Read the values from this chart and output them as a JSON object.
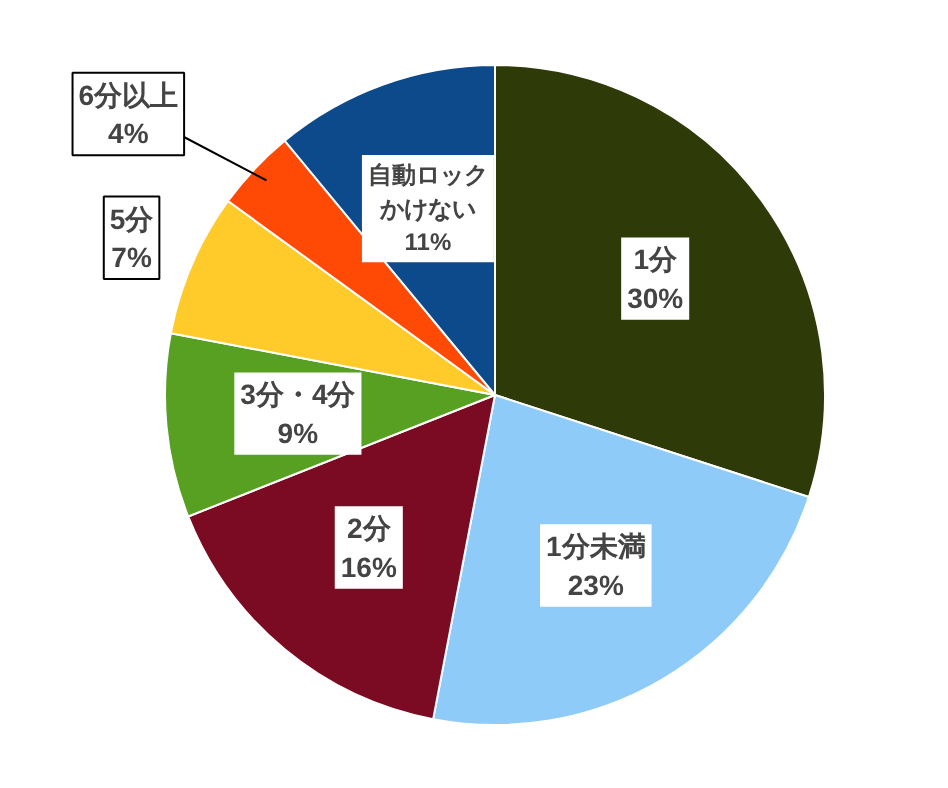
{
  "chart_data": {
    "type": "pie",
    "categories": [
      "1分",
      "1分未満",
      "2分",
      "3分・4分",
      "5分",
      "6分以上",
      "自動ロックかけない"
    ],
    "values": [
      30,
      23,
      16,
      9,
      7,
      4,
      11
    ],
    "value_labels": [
      "30%",
      "23%",
      "16%",
      "9%",
      "7%",
      "4%",
      "11%"
    ],
    "colors": [
      "#2e3b08",
      "#8fcbf9",
      "#7b0b22",
      "#58a022",
      "#ffcb2b",
      "#ff4a06",
      "#0d4a8c"
    ]
  }
}
